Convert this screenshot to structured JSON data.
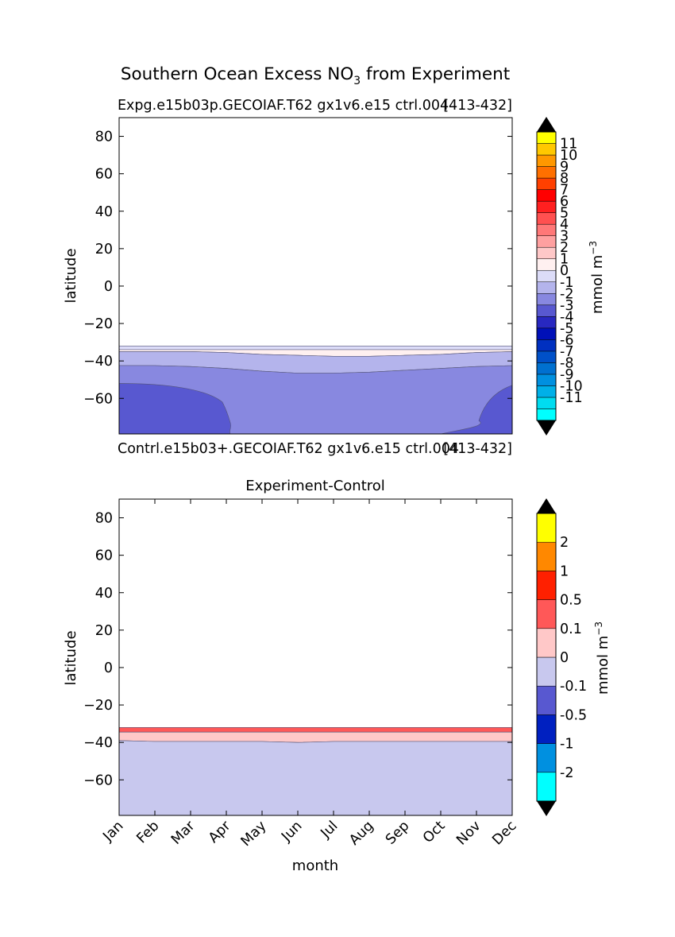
{
  "figure": {
    "suptitle_main": "Southern Ocean Excess NO",
    "suptitle_sub": "3",
    "suptitle_tail": " from Experiment"
  },
  "colors": {
    "cb1": [
      "#00ffff",
      "#00dcf0",
      "#00b0e8",
      "#0090e0",
      "#0070d0",
      "#0050c8",
      "#0030c0",
      "#0010b8",
      "#2828c0",
      "#5858d0",
      "#8888e0",
      "#b4b4ec",
      "#dcdcf8",
      "#fff0f0",
      "#ffc8c8",
      "#ffa0a0",
      "#ff7878",
      "#ff5050",
      "#ff2020",
      "#ff0000",
      "#ff4000",
      "#ff7000",
      "#ff9800",
      "#ffc800",
      "#ffff00"
    ],
    "cb2": [
      "#00ffff",
      "#0090e0",
      "#0020c0",
      "#5858d0",
      "#c8c8ee",
      "#ffc8c8",
      "#ff5858",
      "#ff2000",
      "#ff8800",
      "#ffff00"
    ]
  },
  "chart_data": [
    {
      "type": "heatmap",
      "title_left": "Expg.e15b03p.GECOIAF.T62 gx1v6.e15 ctrl.004",
      "title_right": "[413-432]",
      "title_bottom": "Contrl.e15b03+.GECOIAF.T62 gx1v6.e15 ctrl.004",
      "title_bottom_right": "[413-432]",
      "xlabel": "",
      "ylabel": "latitude",
      "ylim": [
        -79,
        90
      ],
      "yticks": [
        "80",
        "60",
        "40",
        "20",
        "0",
        "−20",
        "−40",
        "−60"
      ],
      "ytick_values": [
        80,
        60,
        40,
        20,
        0,
        -20,
        -40,
        -60
      ],
      "xlim": [
        "Jan",
        "Dec"
      ],
      "colorbar_label": "mmol m",
      "colorbar_label_sup": "−3",
      "colorbar_ticks": [
        "11",
        "10",
        "9",
        "8",
        "7",
        "6",
        "5",
        "4",
        "3",
        "2",
        "1",
        "0",
        "-1",
        "-2",
        "-3",
        "-4",
        "-5",
        "-6",
        "-7",
        "-8",
        "-9",
        "-10",
        "-11"
      ],
      "colorbar_extend": "both",
      "contour_bands": [
        {
          "level": "-1 to 0",
          "upper_lat": [
            -32,
            -32,
            -32,
            -32,
            -32,
            -32,
            -32,
            -32,
            -32,
            -32,
            -32,
            -32
          ],
          "lower_lat": [
            -34,
            -34,
            -34,
            -34,
            -34,
            -34,
            -34,
            -34,
            -34,
            -34,
            -34,
            -34
          ]
        },
        {
          "level": "0 to 1",
          "upper_lat": [
            -34,
            -34,
            -34,
            -34,
            -34,
            -34,
            -34,
            -34,
            -34,
            -34,
            -34,
            -34
          ],
          "lower_lat": [
            -35,
            -35,
            -35,
            -35.5,
            -36.5,
            -37,
            -37.5,
            -37.5,
            -37,
            -36.5,
            -35.5,
            -35
          ]
        },
        {
          "level": "-2 to -1",
          "upper_lat": [
            -35,
            -35,
            -35,
            -35.5,
            -36.5,
            -37,
            -37.5,
            -37.5,
            -37,
            -36.5,
            -35.5,
            -35
          ],
          "lower_lat": [
            -42.5,
            -42.5,
            -43,
            -44,
            -45.5,
            -46.5,
            -46.5,
            -46,
            -45,
            -44,
            -43,
            -42.5
          ]
        },
        {
          "level": "-3 to -2",
          "upper_lat": [
            -42.5,
            -42.5,
            -43,
            -44,
            -45.5,
            -46.5,
            -46.5,
            -46,
            -45,
            -44,
            -43,
            -42.5
          ],
          "lower_lat": [
            -79,
            -79,
            -79,
            -79,
            -79,
            -79,
            -79,
            -79,
            -79,
            -79,
            -79,
            -79
          ]
        },
        {
          "level": "-4 to -3",
          "region": "Jan-Mar and Oct-Dec south of about -52"
        }
      ]
    },
    {
      "type": "heatmap",
      "title": "Experiment-Control",
      "xlabel": "month",
      "ylabel": "latitude",
      "ylim": [
        -79,
        90
      ],
      "yticks": [
        "80",
        "60",
        "40",
        "20",
        "0",
        "−20",
        "−40",
        "−60"
      ],
      "ytick_values": [
        80,
        60,
        40,
        20,
        0,
        -20,
        -40,
        -60
      ],
      "xticks": [
        "Jan",
        "Feb",
        "Mar",
        "Apr",
        "May",
        "Jun",
        "Jul",
        "Aug",
        "Sep",
        "Oct",
        "Nov",
        "Dec"
      ],
      "colorbar_label": "mmol m",
      "colorbar_label_sup": "−3",
      "colorbar_ticks": [
        "2",
        "1",
        "0.5",
        "0.1",
        "0",
        "-0.1",
        "-0.5",
        "-1",
        "-2"
      ],
      "colorbar_extend": "both",
      "contour_bands": [
        {
          "level": "0.1 to 0.5",
          "upper_lat": [
            -32,
            -32,
            -32,
            -32,
            -32,
            -32,
            -32,
            -32,
            -32,
            -32,
            -32,
            -32
          ],
          "lower_lat": [
            -34.5,
            -34.5,
            -34.5,
            -34.5,
            -34.5,
            -34.5,
            -34.5,
            -34.5,
            -34.5,
            -34.5,
            -34.5,
            -34.5
          ]
        },
        {
          "level": "0 to 0.1",
          "upper_lat": [
            -34.5,
            -34.5,
            -34.5,
            -34.5,
            -34.5,
            -34.5,
            -34.5,
            -34.5,
            -34.5,
            -34.5,
            -34.5,
            -34.5
          ],
          "lower_lat": [
            -39,
            -39.5,
            -39.5,
            -39.5,
            -39.5,
            -40,
            -39.5,
            -39.5,
            -39.5,
            -39.5,
            -39.5,
            -39.5
          ]
        },
        {
          "level": "-0.1 to 0",
          "upper_lat": [
            -39,
            -39.5,
            -39.5,
            -39.5,
            -39.5,
            -40,
            -39.5,
            -39.5,
            -39.5,
            -39.5,
            -39.5,
            -39.5
          ],
          "lower_lat": [
            -79,
            -79,
            -79,
            -79,
            -79,
            -79,
            -79,
            -79,
            -79,
            -79,
            -79,
            -79
          ]
        }
      ]
    }
  ]
}
